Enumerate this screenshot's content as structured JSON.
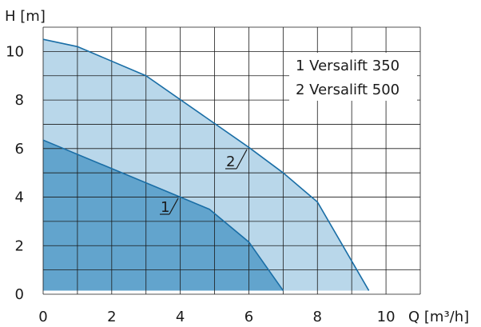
{
  "chart_data": {
    "type": "area",
    "xlabel": "Q [m³/h]",
    "ylabel": "H [m]",
    "xlim": [
      0,
      11
    ],
    "ylim": [
      0,
      11
    ],
    "x_ticks": [
      0,
      2,
      4,
      6,
      8,
      10
    ],
    "y_ticks": [
      0,
      2,
      4,
      6,
      8,
      10
    ],
    "grid": true,
    "legend_position": "top-right",
    "legend": [
      "1 Versalift 350",
      "2 Versalift 500"
    ],
    "series": [
      {
        "label": "1",
        "name": "Versalift 350",
        "color": "#62a4cd",
        "points": [
          [
            0,
            6.35
          ],
          [
            4,
            4.0
          ],
          [
            4.85,
            3.5
          ],
          [
            6,
            2.15
          ],
          [
            7,
            0.15
          ]
        ]
      },
      {
        "label": "2",
        "name": "Versalift 500",
        "color": "#b9d7ea",
        "points": [
          [
            0,
            10.5
          ],
          [
            1,
            10.2
          ],
          [
            3,
            9.0
          ],
          [
            6,
            6.05
          ],
          [
            7,
            5.0
          ],
          [
            8,
            3.8
          ],
          [
            9.5,
            0.15
          ]
        ]
      }
    ],
    "line_color": "#1a6ea6",
    "grid_color": "#1a1a1a"
  }
}
